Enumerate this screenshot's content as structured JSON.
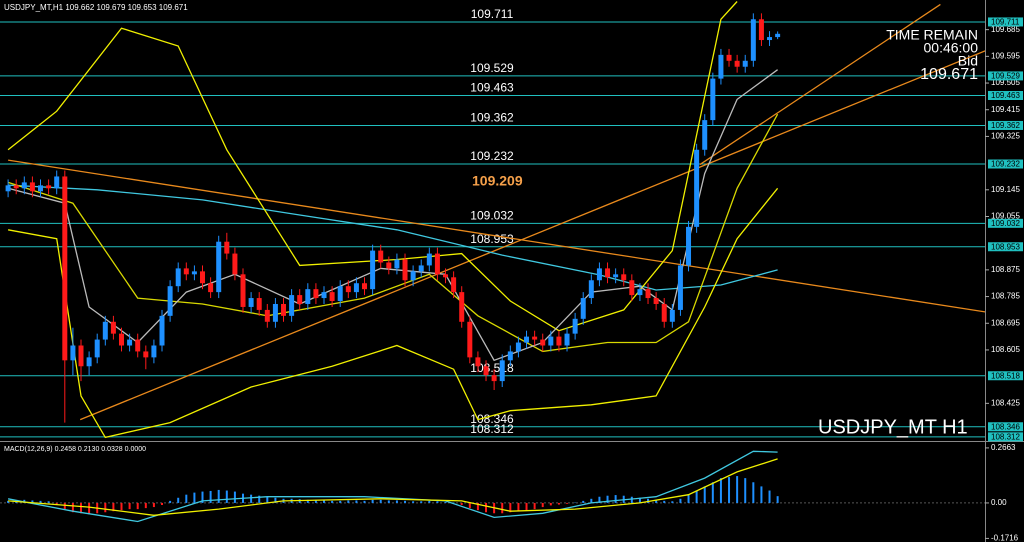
{
  "chart_data": [
    {
      "type": "candlestick",
      "title": "USDJPY_MT,H1  109.662 109.679 109.653 109.671",
      "watermark": "USDJPY_MT H1",
      "time_remain_label": "TIME REMAIN",
      "time_remain": "00:46:00",
      "bid_label": "Bid",
      "bid": 109.671,
      "annotation": "109.209",
      "up_color": "#1e90ff",
      "down_color": "#ff1a1a",
      "level_color": "#20c0c0",
      "xlim": [
        -1,
        120.6
      ],
      "ylim": [
        108.298,
        109.785
      ],
      "yticks": [
        109.685,
        109.595,
        109.505,
        109.415,
        109.325,
        109.145,
        109.055,
        108.875,
        108.785,
        108.695,
        108.605,
        108.425
      ],
      "levels": [
        109.711,
        109.529,
        109.463,
        109.362,
        109.232,
        109.032,
        108.953,
        108.518,
        108.346,
        108.312
      ],
      "candles": [
        [
          109.14,
          109.18,
          109.12,
          109.16
        ],
        [
          109.16,
          109.18,
          109.13,
          109.15
        ],
        [
          109.15,
          109.19,
          109.13,
          109.17
        ],
        [
          109.17,
          109.19,
          109.12,
          109.14
        ],
        [
          109.14,
          109.18,
          109.12,
          109.16
        ],
        [
          109.16,
          109.18,
          109.13,
          109.15
        ],
        [
          109.15,
          109.21,
          109.13,
          109.19
        ],
        [
          109.19,
          109.21,
          108.36,
          108.57
        ],
        [
          108.57,
          108.68,
          108.52,
          108.62
        ],
        [
          108.62,
          108.64,
          108.5,
          108.55
        ],
        [
          108.55,
          108.6,
          108.52,
          108.58
        ],
        [
          108.58,
          108.66,
          108.56,
          108.64
        ],
        [
          108.64,
          108.72,
          108.62,
          108.7
        ],
        [
          108.7,
          108.72,
          108.64,
          108.66
        ],
        [
          108.66,
          108.68,
          108.6,
          108.62
        ],
        [
          108.62,
          108.66,
          108.6,
          108.64
        ],
        [
          108.64,
          108.66,
          108.58,
          108.6
        ],
        [
          108.6,
          108.62,
          108.54,
          108.58
        ],
        [
          108.58,
          108.64,
          108.56,
          108.62
        ],
        [
          108.62,
          108.74,
          108.6,
          108.72
        ],
        [
          108.72,
          108.84,
          108.7,
          108.82
        ],
        [
          108.82,
          108.9,
          108.8,
          108.88
        ],
        [
          108.88,
          108.9,
          108.84,
          108.86
        ],
        [
          108.86,
          108.89,
          108.84,
          108.87
        ],
        [
          108.87,
          108.89,
          108.81,
          108.83
        ],
        [
          108.83,
          108.85,
          108.78,
          108.8
        ],
        [
          108.8,
          108.99,
          108.78,
          108.97
        ],
        [
          108.97,
          109.0,
          108.91,
          108.93
        ],
        [
          108.93,
          108.95,
          108.84,
          108.86
        ],
        [
          108.86,
          108.88,
          108.73,
          108.75
        ],
        [
          108.75,
          108.8,
          108.73,
          108.78
        ],
        [
          108.78,
          108.8,
          108.72,
          108.74
        ],
        [
          108.74,
          108.76,
          108.68,
          108.7
        ],
        [
          108.7,
          108.78,
          108.68,
          108.76
        ],
        [
          108.76,
          108.78,
          108.7,
          108.72
        ],
        [
          108.72,
          108.81,
          108.7,
          108.79
        ],
        [
          108.79,
          108.81,
          108.74,
          108.76
        ],
        [
          108.76,
          108.83,
          108.74,
          108.81
        ],
        [
          108.81,
          108.83,
          108.76,
          108.78
        ],
        [
          108.78,
          108.82,
          108.76,
          108.8
        ],
        [
          108.8,
          108.82,
          108.75,
          108.77
        ],
        [
          108.77,
          108.84,
          108.75,
          108.82
        ],
        [
          108.82,
          108.84,
          108.78,
          108.8
        ],
        [
          108.8,
          108.85,
          108.78,
          108.83
        ],
        [
          108.83,
          108.85,
          108.79,
          108.81
        ],
        [
          108.81,
          108.96,
          108.79,
          108.94
        ],
        [
          108.94,
          108.96,
          108.88,
          108.9
        ],
        [
          108.9,
          108.92,
          108.86,
          108.88
        ],
        [
          108.88,
          108.93,
          108.86,
          108.91
        ],
        [
          108.91,
          108.93,
          108.82,
          108.84
        ],
        [
          108.84,
          108.89,
          108.82,
          108.87
        ],
        [
          108.87,
          108.91,
          108.85,
          108.89
        ],
        [
          108.89,
          108.95,
          108.87,
          108.93
        ],
        [
          108.93,
          108.95,
          108.84,
          108.86
        ],
        [
          108.86,
          108.88,
          108.83,
          108.85
        ],
        [
          108.85,
          108.87,
          108.78,
          108.8
        ],
        [
          108.8,
          108.82,
          108.68,
          108.7
        ],
        [
          108.7,
          108.72,
          108.56,
          108.58
        ],
        [
          108.58,
          108.6,
          108.53,
          108.55
        ],
        [
          108.55,
          108.57,
          108.5,
          108.52
        ],
        [
          108.52,
          108.54,
          108.47,
          108.5
        ],
        [
          108.5,
          108.59,
          108.48,
          108.57
        ],
        [
          108.57,
          108.62,
          108.55,
          108.6
        ],
        [
          108.6,
          108.65,
          108.58,
          108.63
        ],
        [
          108.63,
          108.67,
          108.61,
          108.65
        ],
        [
          108.65,
          108.67,
          108.62,
          108.64
        ],
        [
          108.64,
          108.66,
          108.6,
          108.62
        ],
        [
          108.62,
          108.67,
          108.6,
          108.65
        ],
        [
          108.65,
          108.67,
          108.6,
          108.62
        ],
        [
          108.62,
          108.68,
          108.6,
          108.66
        ],
        [
          108.66,
          108.73,
          108.64,
          108.71
        ],
        [
          108.71,
          108.8,
          108.69,
          108.78
        ],
        [
          108.78,
          108.86,
          108.76,
          108.84
        ],
        [
          108.84,
          108.9,
          108.82,
          108.88
        ],
        [
          108.88,
          108.9,
          108.83,
          108.85
        ],
        [
          108.85,
          108.88,
          108.83,
          108.86
        ],
        [
          108.86,
          108.88,
          108.82,
          108.84
        ],
        [
          108.84,
          108.86,
          108.77,
          108.79
        ],
        [
          108.79,
          108.83,
          108.77,
          108.81
        ],
        [
          108.81,
          108.83,
          108.76,
          108.78
        ],
        [
          108.78,
          108.8,
          108.74,
          108.76
        ],
        [
          108.76,
          108.78,
          108.68,
          108.7
        ],
        [
          108.7,
          108.76,
          108.68,
          108.74
        ],
        [
          108.74,
          108.91,
          108.72,
          108.89
        ],
        [
          108.89,
          109.04,
          108.87,
          109.02
        ],
        [
          109.02,
          109.3,
          109.0,
          109.28
        ],
        [
          109.28,
          109.4,
          109.26,
          109.38
        ],
        [
          109.38,
          109.54,
          109.36,
          109.52
        ],
        [
          109.52,
          109.62,
          109.5,
          109.6
        ],
        [
          109.6,
          109.62,
          109.56,
          109.58
        ],
        [
          109.58,
          109.6,
          109.54,
          109.56
        ],
        [
          109.56,
          109.6,
          109.54,
          109.58
        ],
        [
          109.58,
          109.74,
          109.56,
          109.72
        ],
        [
          109.72,
          109.74,
          109.63,
          109.65
        ],
        [
          109.65,
          109.68,
          109.63,
          109.66
        ],
        [
          109.66,
          109.679,
          109.653,
          109.671
        ]
      ],
      "overlays": [
        {
          "color": "#e8891c",
          "x": [
            0,
            125.4
          ],
          "values": [
            109.245,
            108.713
          ]
        },
        {
          "color": "#e8891c",
          "x": [
            8.9,
            121.2
          ],
          "values": [
            108.37,
            109.62
          ]
        },
        {
          "color": "#e8891c",
          "x": [
            85.4,
            115.1
          ],
          "values": [
            109.23,
            109.77
          ]
        },
        {
          "color": "#40c8e0",
          "x": [
            0,
            11,
            24,
            36,
            48,
            61,
            73,
            80,
            88,
            95
          ],
          "values": [
            109.161,
            109.145,
            109.111,
            109.06,
            109.01,
            108.925,
            108.858,
            108.807,
            108.824,
            108.875
          ]
        },
        {
          "color": "#f0f000",
          "x": [
            0,
            6,
            14,
            21,
            27,
            36,
            48,
            56,
            62,
            68,
            76,
            82,
            88,
            90
          ],
          "values": [
            109.28,
            109.41,
            109.69,
            109.63,
            109.28,
            108.89,
            108.91,
            108.93,
            108.77,
            108.67,
            108.74,
            108.94,
            109.72,
            109.78
          ]
        },
        {
          "color": "#f0f000",
          "x": [
            0,
            6,
            9,
            12,
            20,
            30,
            40,
            48,
            55,
            58,
            62,
            72,
            80,
            86,
            90,
            95
          ],
          "values": [
            109.01,
            108.98,
            108.45,
            108.31,
            108.36,
            108.48,
            108.55,
            108.62,
            108.54,
            108.37,
            108.4,
            108.42,
            108.45,
            108.75,
            108.98,
            109.15
          ]
        },
        {
          "color": "#d8d800",
          "x": [
            0,
            8,
            16,
            24,
            32,
            44,
            52,
            58,
            66,
            74,
            80,
            84,
            90,
            95
          ],
          "values": [
            109.17,
            109.1,
            108.78,
            108.76,
            108.72,
            108.78,
            108.86,
            108.72,
            108.6,
            108.63,
            108.63,
            108.7,
            109.15,
            109.4
          ]
        },
        {
          "color": "#bbbbbb",
          "x": [
            0,
            7,
            10,
            16,
            22,
            28,
            36,
            46,
            54,
            60,
            66,
            72,
            78,
            82,
            86,
            90,
            95
          ],
          "values": [
            109.15,
            109.1,
            108.75,
            108.63,
            108.8,
            108.86,
            108.76,
            108.88,
            108.86,
            108.57,
            108.63,
            108.8,
            108.82,
            108.74,
            109.2,
            109.45,
            109.55
          ]
        }
      ]
    },
    {
      "type": "macd",
      "title": "MACD(12,26,9) 0.2458 0.2130 0.0328 0.0000",
      "up_color": "#1e90ff",
      "down_color": "#ff1a1a",
      "xlim": [
        -1,
        120.6
      ],
      "ylim": [
        -0.189,
        0.29
      ],
      "yticks": [
        0.2663,
        {
          "value": 0,
          "label": "0.00"
        },
        -0.1716
      ],
      "values": [
        0.01,
        0.012,
        0.015,
        0.012,
        0.01,
        0.008,
        -0.01,
        -0.03,
        -0.045,
        -0.05,
        -0.055,
        -0.05,
        -0.045,
        -0.04,
        -0.035,
        -0.03,
        -0.03,
        -0.025,
        -0.02,
        -0.01,
        0.01,
        0.025,
        0.04,
        0.05,
        0.055,
        0.058,
        0.063,
        0.06,
        0.055,
        0.045,
        0.04,
        0.035,
        0.03,
        0.025,
        0.02,
        0.02,
        0.018,
        0.015,
        0.015,
        0.012,
        0.01,
        0.01,
        0.012,
        0.012,
        0.01,
        0.015,
        0.015,
        0.012,
        0.012,
        0.01,
        0.008,
        0.008,
        0.01,
        0.008,
        0.005,
        0.002,
        -0.01,
        -0.025,
        -0.035,
        -0.045,
        -0.05,
        -0.05,
        -0.045,
        -0.04,
        -0.035,
        -0.03,
        -0.02,
        -0.012,
        -0.008,
        -0.004,
        0.002,
        0.01,
        0.02,
        0.03,
        0.035,
        0.038,
        0.035,
        0.03,
        0.025,
        0.02,
        0.015,
        0.01,
        0.008,
        0.02,
        0.04,
        0.06,
        0.08,
        0.1,
        0.12,
        0.125,
        0.13,
        0.12,
        0.1,
        0.08,
        0.06,
        0.0328
      ],
      "lines": [
        {
          "color": "#40c8e0",
          "x": [
            0,
            8,
            16,
            24,
            32,
            44,
            54,
            60,
            66,
            72,
            80,
            86,
            92,
            95
          ],
          "values": [
            0.02,
            -0.04,
            -0.09,
            0.01,
            0.03,
            0.03,
            0.01,
            -0.07,
            -0.05,
            0,
            0.03,
            0.12,
            0.25,
            0.2458
          ]
        },
        {
          "color": "#f0f000",
          "x": [
            0,
            10,
            18,
            26,
            34,
            46,
            56,
            62,
            70,
            78,
            84,
            90,
            95
          ],
          "values": [
            0.01,
            -0.02,
            -0.06,
            -0.03,
            0.01,
            0.02,
            0.01,
            -0.04,
            -0.03,
            0,
            0.04,
            0.15,
            0.213
          ]
        }
      ]
    }
  ]
}
